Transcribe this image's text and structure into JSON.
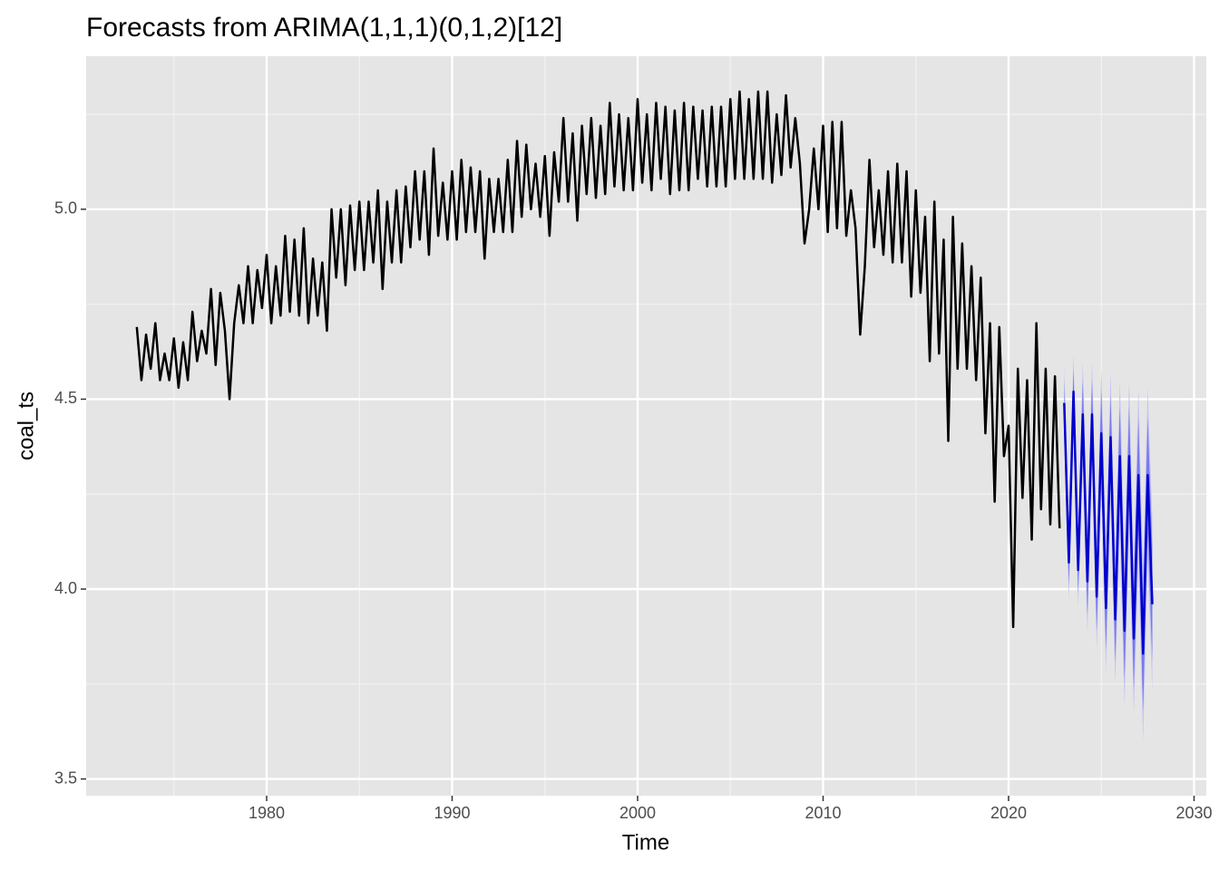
{
  "chart_data": {
    "type": "line",
    "title": "Forecasts from ARIMA(1,1,1)(0,1,2)[12]",
    "xlabel": "Time",
    "ylabel": "coal_ts",
    "xlim": [
      1970.27,
      2030.66
    ],
    "xticks": [
      1980,
      1990,
      2000,
      2010,
      2020,
      2030
    ],
    "minor_xticks": [
      1975,
      1985,
      1995,
      2005,
      2015,
      2025
    ],
    "ylim": [
      3.456,
      5.403
    ],
    "yticks": [
      3.5,
      {
        "value": 4,
        "label": "4.0"
      },
      4.5,
      {
        "value": 5,
        "label": "5.0"
      }
    ],
    "minor_yticks": [
      3.75,
      4.25,
      4.75,
      5.25
    ],
    "grid": true,
    "background": "#e5e5e5",
    "x": [
      1973,
      1973.25,
      1973.5,
      1973.75,
      1974,
      1974.25,
      1974.5,
      1974.75,
      1975,
      1975.25,
      1975.5,
      1975.75,
      1976,
      1976.25,
      1976.5,
      1976.75,
      1977,
      1977.25,
      1977.5,
      1977.75,
      1978,
      1978.25,
      1978.5,
      1978.75,
      1979,
      1979.25,
      1979.5,
      1979.75,
      1980,
      1980.25,
      1980.5,
      1980.75,
      1981,
      1981.25,
      1981.5,
      1981.75,
      1982,
      1982.25,
      1982.5,
      1982.75,
      1983,
      1983.25,
      1983.5,
      1983.75,
      1984,
      1984.25,
      1984.5,
      1984.75,
      1985,
      1985.25,
      1985.5,
      1985.75,
      1986,
      1986.25,
      1986.5,
      1986.75,
      1987,
      1987.25,
      1987.5,
      1987.75,
      1988,
      1988.25,
      1988.5,
      1988.75,
      1989,
      1989.25,
      1989.5,
      1989.75,
      1990,
      1990.25,
      1990.5,
      1990.75,
      1991,
      1991.25,
      1991.5,
      1991.75,
      1992,
      1992.25,
      1992.5,
      1992.75,
      1993,
      1993.25,
      1993.5,
      1993.75,
      1994,
      1994.25,
      1994.5,
      1994.75,
      1995,
      1995.25,
      1995.5,
      1995.75,
      1996,
      1996.25,
      1996.5,
      1996.75,
      1997,
      1997.25,
      1997.5,
      1997.75,
      1998,
      1998.25,
      1998.5,
      1998.75,
      1999,
      1999.25,
      1999.5,
      1999.75,
      2000,
      2000.25,
      2000.5,
      2000.75,
      2001,
      2001.25,
      2001.5,
      2001.75,
      2002,
      2002.25,
      2002.5,
      2002.75,
      2003,
      2003.25,
      2003.5,
      2003.75,
      2004,
      2004.25,
      2004.5,
      2004.75,
      2005,
      2005.25,
      2005.5,
      2005.75,
      2006,
      2006.25,
      2006.5,
      2006.75,
      2007,
      2007.25,
      2007.5,
      2007.75,
      2008,
      2008.25,
      2008.5,
      2008.75,
      2009,
      2009.25,
      2009.5,
      2009.75,
      2010,
      2010.25,
      2010.5,
      2010.75,
      2011,
      2011.25,
      2011.5,
      2011.75,
      2012,
      2012.25,
      2012.5,
      2012.75,
      2013,
      2013.25,
      2013.5,
      2013.75,
      2014,
      2014.25,
      2014.5,
      2014.75,
      2015,
      2015.25,
      2015.5,
      2015.75,
      2016,
      2016.25,
      2016.5,
      2016.75,
      2017,
      2017.25,
      2017.5,
      2017.75,
      2018,
      2018.25,
      2018.5,
      2018.75,
      2019,
      2019.25,
      2019.5,
      2019.75,
      2020,
      2020.25,
      2020.5,
      2020.75,
      2021,
      2021.25,
      2021.5,
      2021.75,
      2022,
      2022.25,
      2022.5,
      2022.75
    ],
    "series": [
      {
        "color": "#000000",
        "values": [
          4.69,
          4.55,
          4.67,
          4.58,
          4.7,
          4.55,
          4.62,
          4.55,
          4.66,
          4.53,
          4.65,
          4.55,
          4.73,
          4.6,
          4.68,
          4.62,
          4.79,
          4.59,
          4.78,
          4.68,
          4.5,
          4.7,
          4.8,
          4.7,
          4.85,
          4.7,
          4.84,
          4.74,
          4.88,
          4.7,
          4.85,
          4.72,
          4.93,
          4.73,
          4.92,
          4.72,
          4.95,
          4.7,
          4.87,
          4.72,
          4.86,
          4.68,
          5.0,
          4.82,
          5.0,
          4.8,
          5.01,
          4.84,
          5.02,
          4.84,
          5.02,
          4.86,
          5.05,
          4.79,
          5.02,
          4.86,
          5.05,
          4.86,
          5.06,
          4.9,
          5.1,
          4.92,
          5.1,
          4.88,
          5.16,
          4.93,
          5.07,
          4.92,
          5.1,
          4.92,
          5.13,
          4.94,
          5.11,
          4.94,
          5.1,
          4.87,
          5.08,
          4.94,
          5.08,
          4.94,
          5.13,
          4.94,
          5.18,
          4.98,
          5.17,
          5.0,
          5.12,
          4.98,
          5.14,
          4.93,
          5.15,
          5.02,
          5.24,
          5.02,
          5.2,
          4.97,
          5.22,
          5.04,
          5.24,
          5.03,
          5.22,
          5.04,
          5.28,
          5.06,
          5.25,
          5.05,
          5.24,
          5.05,
          5.29,
          5.07,
          5.25,
          5.05,
          5.28,
          5.08,
          5.27,
          5.04,
          5.26,
          5.05,
          5.28,
          5.05,
          5.27,
          5.08,
          5.26,
          5.06,
          5.27,
          5.06,
          5.27,
          5.06,
          5.29,
          5.08,
          5.31,
          5.08,
          5.29,
          5.08,
          5.31,
          5.08,
          5.31,
          5.07,
          5.25,
          5.09,
          5.3,
          5.11,
          5.24,
          5.12,
          4.91,
          5.0,
          5.16,
          5.0,
          5.22,
          4.94,
          5.23,
          4.95,
          5.23,
          4.93,
          5.05,
          4.95,
          4.67,
          4.85,
          5.13,
          4.9,
          5.05,
          4.88,
          5.1,
          4.86,
          5.12,
          4.86,
          5.1,
          4.77,
          5.05,
          4.78,
          4.98,
          4.6,
          5.02,
          4.62,
          4.92,
          4.39,
          4.98,
          4.58,
          4.91,
          4.58,
          4.85,
          4.55,
          4.82,
          4.41,
          4.7,
          4.23,
          4.69,
          4.35,
          4.43,
          3.9,
          4.58,
          4.24,
          4.55,
          4.13,
          4.7,
          4.21,
          4.58,
          4.17,
          4.56,
          4.16
        ]
      }
    ],
    "forecast": {
      "x": [
        2023,
        2023.25,
        2023.5,
        2023.75,
        2024,
        2024.25,
        2024.5,
        2024.75,
        2025,
        2025.25,
        2025.5,
        2025.75,
        2026,
        2026.25,
        2026.5,
        2026.75,
        2027,
        2027.25,
        2027.5,
        2027.75
      ],
      "mean": [
        4.49,
        4.07,
        4.52,
        4.05,
        4.46,
        4.02,
        4.46,
        3.98,
        4.41,
        3.95,
        4.4,
        3.92,
        4.35,
        3.89,
        4.35,
        3.87,
        4.3,
        3.83,
        4.3,
        3.96
      ],
      "lo80": [
        4.43,
        4.01,
        4.46,
        3.99,
        4.37,
        3.93,
        4.37,
        3.89,
        4.3,
        3.84,
        4.29,
        3.81,
        4.22,
        3.76,
        4.22,
        3.74,
        4.15,
        3.68,
        4.15,
        3.81
      ],
      "hi80": [
        4.55,
        4.13,
        4.58,
        4.11,
        4.55,
        4.11,
        4.55,
        4.07,
        4.52,
        4.06,
        4.51,
        4.03,
        4.48,
        4.02,
        4.48,
        4.0,
        4.45,
        3.98,
        4.45,
        4.11
      ],
      "lo95": [
        4.39,
        3.97,
        4.42,
        3.95,
        4.32,
        3.88,
        4.32,
        3.84,
        4.24,
        3.78,
        4.23,
        3.75,
        4.15,
        3.69,
        4.15,
        3.67,
        4.07,
        3.6,
        4.07,
        3.73
      ],
      "hi95": [
        4.59,
        4.17,
        4.62,
        4.15,
        4.6,
        4.16,
        4.6,
        4.12,
        4.58,
        4.12,
        4.57,
        4.09,
        4.55,
        4.09,
        4.55,
        4.07,
        4.53,
        4.06,
        4.53,
        4.19
      ],
      "color": "#0000cc",
      "color80": "#7878ee",
      "color95": "#c4c4f4"
    }
  }
}
